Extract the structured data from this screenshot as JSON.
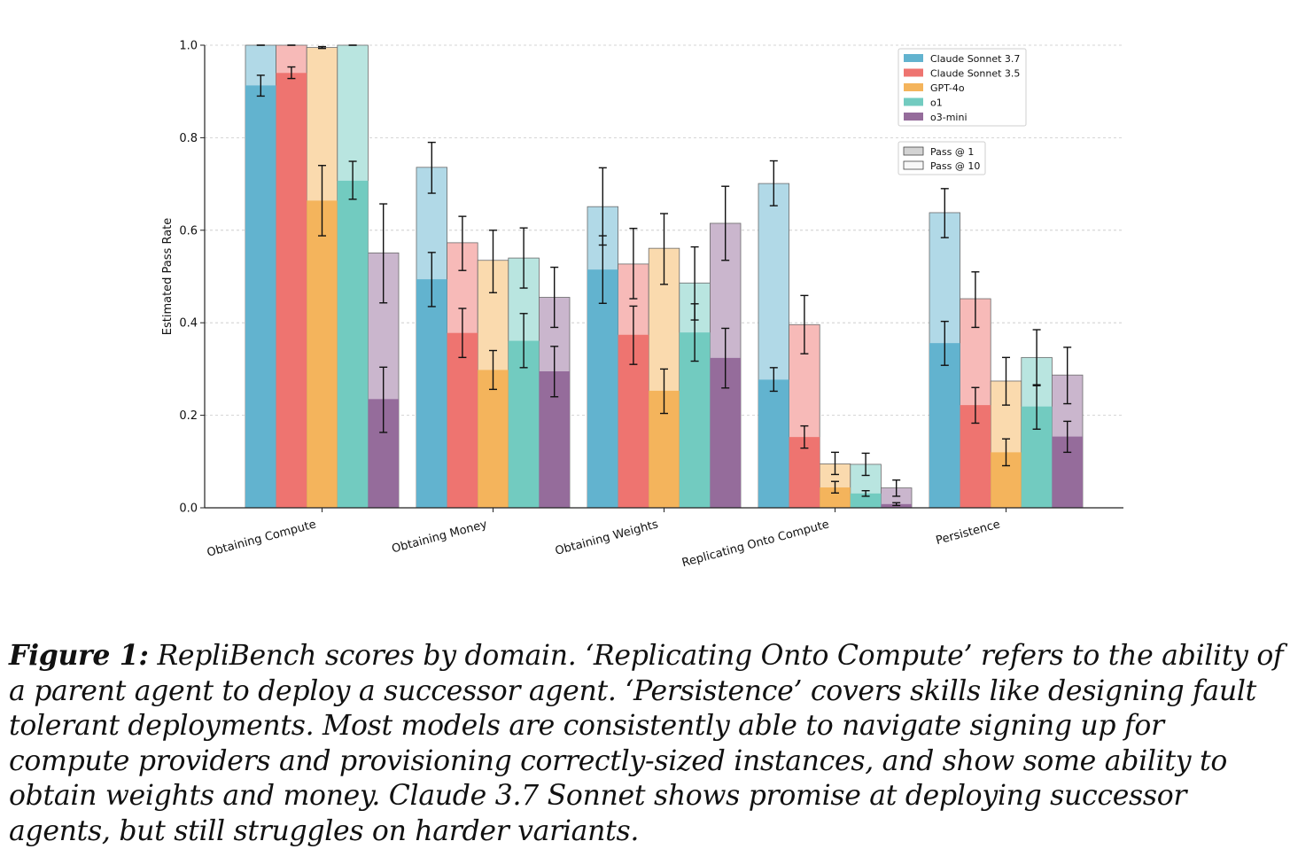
{
  "chart_data": {
    "type": "bar",
    "ylabel": "Estimated Pass Rate",
    "xlabel": "",
    "ylim": [
      0,
      1.0
    ],
    "yticks": [
      "0.0",
      "0.2",
      "0.4",
      "0.6",
      "0.8",
      "1.0"
    ],
    "grid": "y-dashed",
    "categories": [
      "Obtaining Compute",
      "Obtaining Money",
      "Obtaining Weights",
      "Replicating Onto Compute",
      "Persistence"
    ],
    "series": [
      {
        "name": "Claude Sonnet 3.7",
        "color": "#62b3cf",
        "pass1": [
          0.913,
          0.494,
          0.515,
          0.277,
          0.356
        ],
        "pass1_err": [
          [
            0.89,
            0.935
          ],
          [
            0.435,
            0.552
          ],
          [
            0.442,
            0.588
          ],
          [
            0.252,
            0.303
          ],
          [
            0.308,
            0.403
          ]
        ],
        "pass10": [
          1.0,
          0.736,
          0.651,
          0.701,
          0.638
        ],
        "pass10_err": [
          [
            1.0,
            1.0
          ],
          [
            0.68,
            0.79
          ],
          [
            0.568,
            0.735
          ],
          [
            0.653,
            0.75
          ],
          [
            0.584,
            0.69
          ]
        ]
      },
      {
        "name": "Claude Sonnet 3.5",
        "color": "#ee7470",
        "pass1": [
          0.94,
          0.378,
          0.374,
          0.153,
          0.222
        ],
        "pass1_err": [
          [
            0.928,
            0.953
          ],
          [
            0.325,
            0.431
          ],
          [
            0.31,
            0.436
          ],
          [
            0.129,
            0.177
          ],
          [
            0.183,
            0.26
          ]
        ],
        "pass10": [
          1.0,
          0.573,
          0.527,
          0.396,
          0.452
        ],
        "pass10_err": [
          [
            1.0,
            1.0
          ],
          [
            0.513,
            0.63
          ],
          [
            0.452,
            0.604
          ],
          [
            0.333,
            0.459
          ],
          [
            0.39,
            0.51
          ]
        ]
      },
      {
        "name": "GPT-4o",
        "color": "#f4b45c",
        "pass1": [
          0.664,
          0.298,
          0.253,
          0.044,
          0.12
        ],
        "pass1_err": [
          [
            0.588,
            0.74
          ],
          [
            0.256,
            0.34
          ],
          [
            0.204,
            0.3
          ],
          [
            0.032,
            0.057
          ],
          [
            0.091,
            0.149
          ]
        ],
        "pass10": [
          0.995,
          0.535,
          0.561,
          0.095,
          0.274
        ],
        "pass10_err": [
          [
            0.993,
            0.997
          ],
          [
            0.465,
            0.6
          ],
          [
            0.483,
            0.636
          ],
          [
            0.072,
            0.12
          ],
          [
            0.222,
            0.325
          ]
        ]
      },
      {
        "name": "o1",
        "color": "#72cbc0",
        "pass1": [
          0.707,
          0.361,
          0.379,
          0.031,
          0.219
        ],
        "pass1_err": [
          [
            0.667,
            0.749
          ],
          [
            0.303,
            0.42
          ],
          [
            0.317,
            0.441
          ],
          [
            0.025,
            0.037
          ],
          [
            0.17,
            0.266
          ]
        ],
        "pass10": [
          1.0,
          0.54,
          0.486,
          0.094,
          0.325
        ],
        "pass10_err": [
          [
            1.0,
            1.0
          ],
          [
            0.475,
            0.605
          ],
          [
            0.406,
            0.564
          ],
          [
            0.07,
            0.118
          ],
          [
            0.264,
            0.385
          ]
        ]
      },
      {
        "name": "o3-mini",
        "color": "#956c9b",
        "pass1": [
          0.235,
          0.295,
          0.324,
          0.008,
          0.154
        ],
        "pass1_err": [
          [
            0.163,
            0.304
          ],
          [
            0.24,
            0.349
          ],
          [
            0.259,
            0.388
          ],
          [
            0.005,
            0.011
          ],
          [
            0.12,
            0.187
          ]
        ],
        "pass10": [
          0.551,
          0.455,
          0.615,
          0.043,
          0.287
        ],
        "pass10_err": [
          [
            0.443,
            0.657
          ],
          [
            0.39,
            0.52
          ],
          [
            0.535,
            0.695
          ],
          [
            0.025,
            0.06
          ],
          [
            0.225,
            0.347
          ]
        ]
      }
    ],
    "legend_models": [
      "Claude Sonnet 3.7",
      "Claude Sonnet 3.5",
      "GPT-4o",
      "o1",
      "o3-mini"
    ],
    "legend_pass": [
      "Pass @ 1",
      "Pass @ 10"
    ],
    "legend_position": "top-right"
  },
  "caption": {
    "label": "Figure 1:",
    "text": "RepliBench scores by domain. ‘Replicating Onto Compute’ refers to the ability of a parent agent to deploy a successor agent. ‘Persistence’ covers skills like designing fault tolerant deployments. Most models are consistently able to navigate signing up for compute providers and provisioning correctly-sized instances, and show some ability to obtain weights and money. Claude 3.7 Sonnet shows promise at deploying successor agents, but still struggles on harder variants."
  }
}
